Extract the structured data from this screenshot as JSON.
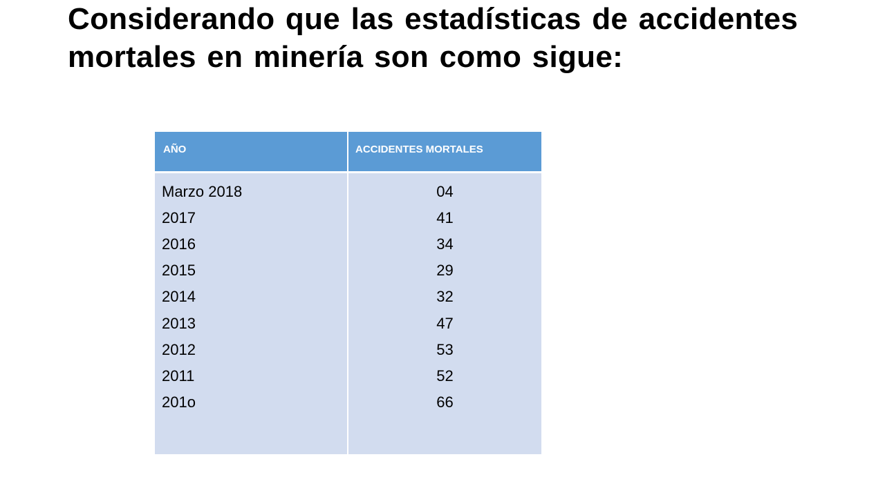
{
  "slide": {
    "title": "Considerando que las estadísticas de accidentes mortales en minería son como sigue:"
  },
  "table": {
    "headers": [
      "AÑO",
      "ACCIDENTES MORTALES"
    ],
    "years": [
      "Marzo 2018",
      "2017",
      "2016",
      "2015",
      "2014",
      "2013",
      "2012",
      "2011",
      "201o"
    ],
    "accidents": [
      "04",
      "41",
      "34",
      "29",
      "32",
      "47",
      "53",
      "52",
      "66"
    ]
  },
  "colors": {
    "header_bg": "#5b9bd5",
    "body_bg": "#d2dcef",
    "header_text": "#ffffff",
    "body_text": "#000000"
  }
}
